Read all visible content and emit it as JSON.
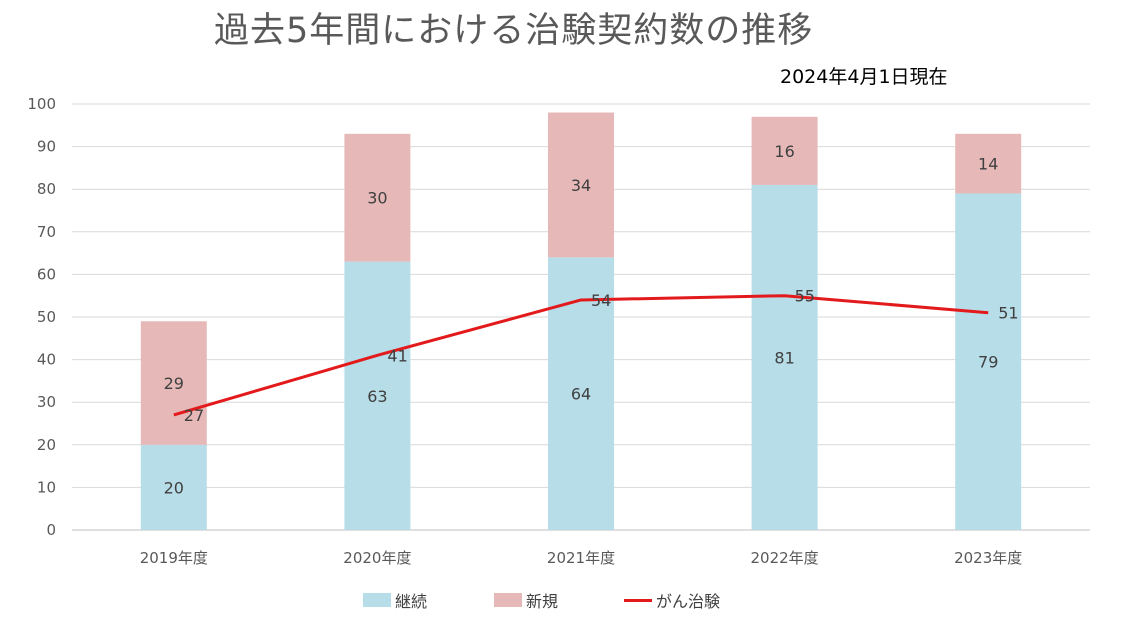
{
  "chart_data": {
    "type": "bar",
    "stacked": true,
    "title": "過去5年間における治験契約数の推移",
    "subtitle": "2024年4月1日現在",
    "categories": [
      "2019年度",
      "2020年度",
      "2021年度",
      "2022年度",
      "2023年度"
    ],
    "series": [
      {
        "name": "継続",
        "type": "bar",
        "color": "#b7dde8",
        "values": [
          20,
          63,
          64,
          81,
          79
        ]
      },
      {
        "name": "新規",
        "type": "bar",
        "color": "#e6b9b8",
        "values": [
          29,
          30,
          34,
          16,
          14
        ]
      },
      {
        "name": "がん治験",
        "type": "line",
        "color": "#e31a1c",
        "values": [
          27,
          41,
          54,
          55,
          51
        ]
      }
    ],
    "ylim": [
      0,
      100
    ],
    "yticks": [
      0,
      10,
      20,
      30,
      40,
      50,
      60,
      70,
      80,
      90,
      100
    ],
    "grid": true,
    "legend": "bottom"
  }
}
